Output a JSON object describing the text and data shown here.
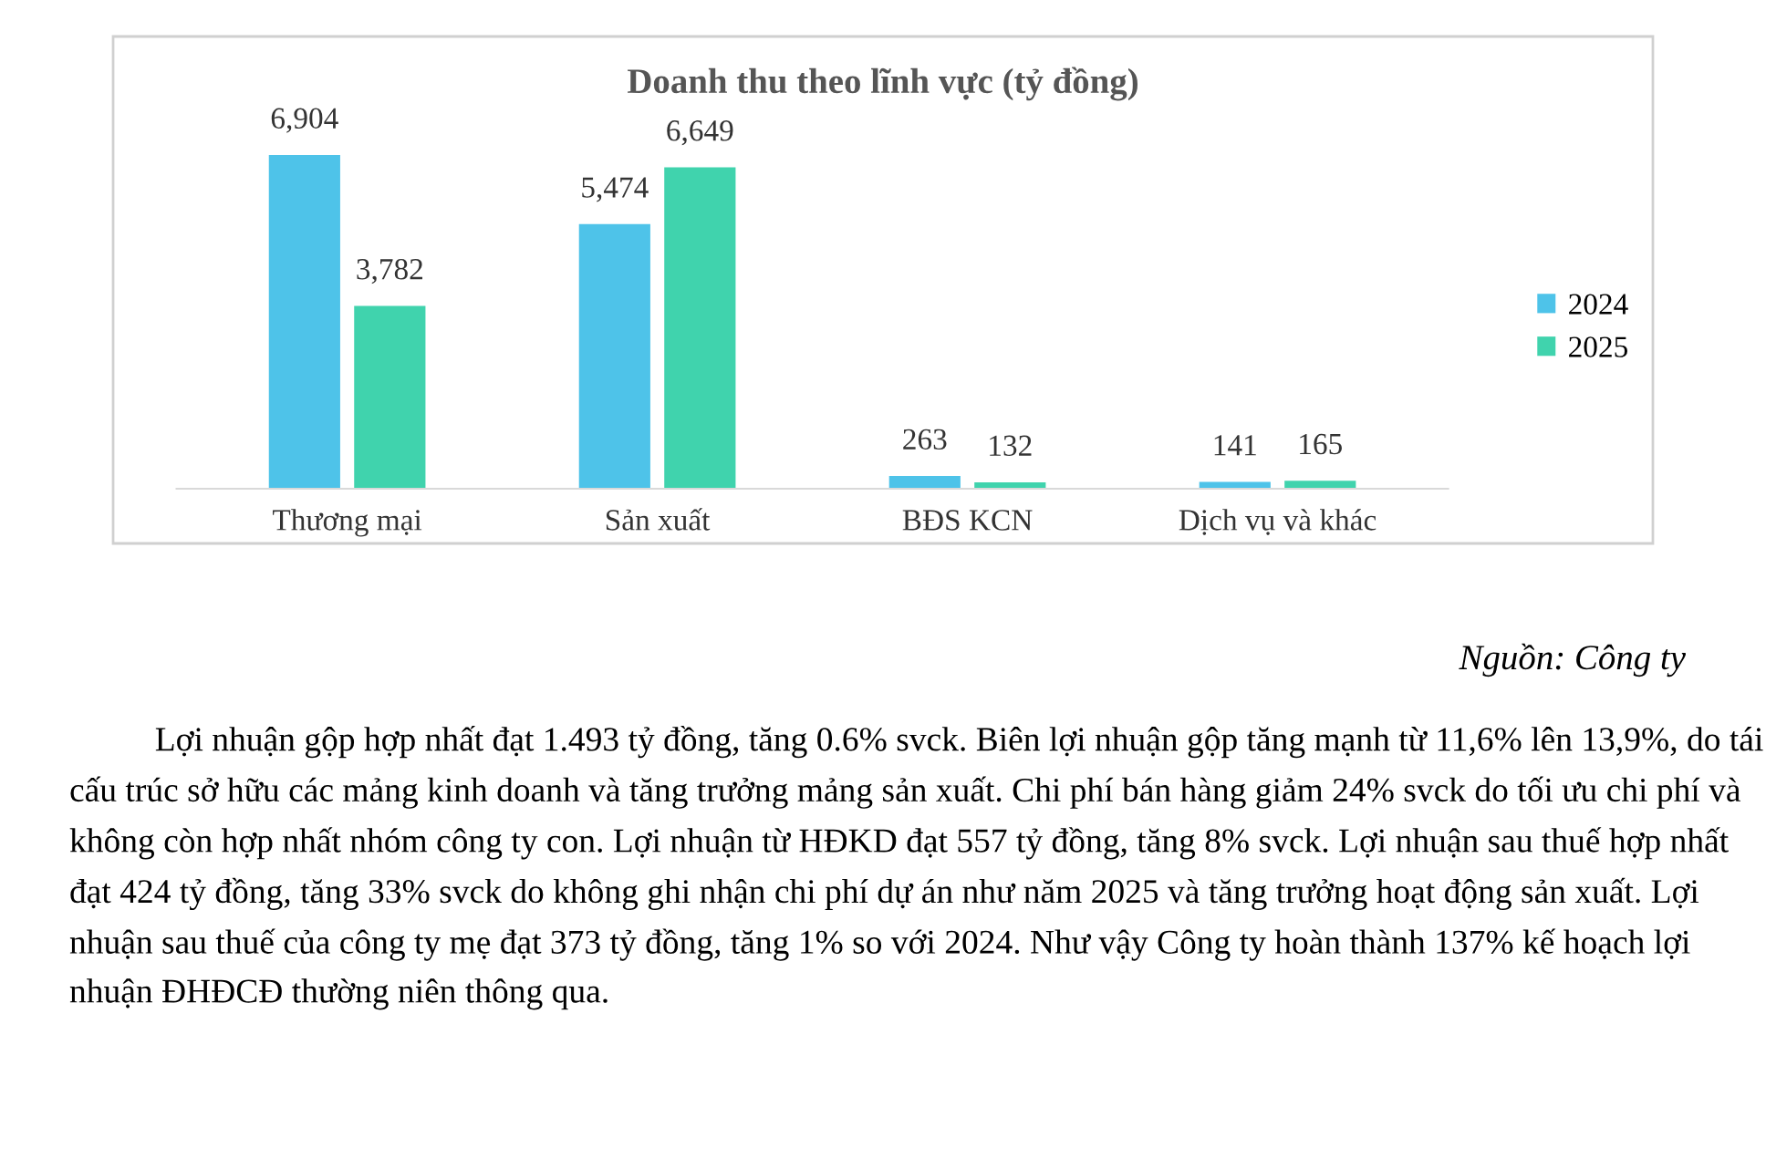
{
  "chart_data": {
    "type": "bar",
    "title": "Doanh thu theo lĩnh vực (tỷ đồng)",
    "categories": [
      "Thương mại",
      "Sản xuất",
      "BĐS KCN",
      "Dịch vụ và khác"
    ],
    "series": [
      {
        "name": "2024",
        "color": "#4ec3e9",
        "values": [
          6904,
          5474,
          263,
          141
        ],
        "value_labels": [
          "6,904",
          "5,474",
          "263",
          "141"
        ]
      },
      {
        "name": "2025",
        "color": "#40d3ad",
        "values": [
          3782,
          6649,
          132,
          165
        ],
        "value_labels": [
          "3,782",
          "6,649",
          "132",
          "165"
        ]
      }
    ],
    "legend": "right",
    "grid": false,
    "tick_labels": "x",
    "annotations": [
      "Nguồn: Công ty",
      "Lợi nhuận gộp hợp nhất đạt 1.493 tỷ đồng, tăng 0.6% svck. Biên lợi nhuận gộp tăng mạnh từ 11,6% lên 13,9%, do tái cấu trúc sở hữu các mảng kinh doanh và tăng trưởng mảng sản xuất. Chi phí bán hàng giảm 24% svck do tối ưu chi phí và không còn hợp nhất nhóm công ty con. Lợi nhuận từ HĐKD đạt 557 tỷ đồng, tăng 8% svck. Lợi nhuận sau thuế hợp nhất đạt 424 tỷ đồng, tăng 33% svck do không ghi nhận chi phí dự án như năm 2025 và tăng trưởng hoạt động sản xuất. Lợi nhuận sau thuế của công ty mẹ đạt 373 tỷ đồng, tăng 1% so với 2024. Như vậy Công ty hoàn thành 137% kế hoạch lợi nhuận ĐHĐCĐ thường niên thông qua."
    ]
  }
}
